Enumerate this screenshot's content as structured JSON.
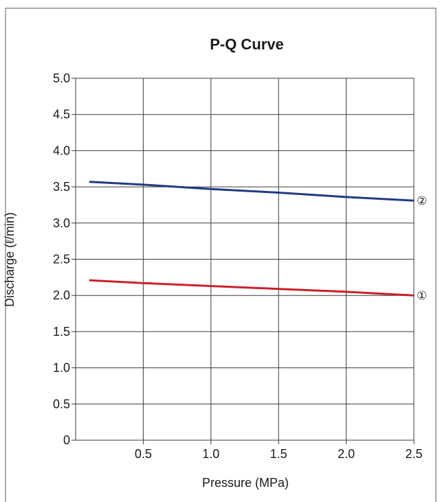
{
  "chart_data": {
    "type": "line",
    "title": "P-Q Curve",
    "xlabel": "Pressure (MPa)",
    "ylabel": "Discharge (ℓ/min)",
    "xlim": [
      0,
      2.5
    ],
    "ylim": [
      0,
      5.0
    ],
    "x_ticks": [
      "0.5",
      "1.0",
      "1.5",
      "2.0",
      "2.5"
    ],
    "y_ticks": [
      "0",
      "0.5",
      "1.0",
      "1.5",
      "2.0",
      "2.5",
      "3.0",
      "3.5",
      "4.0",
      "4.5",
      "5.0"
    ],
    "grid": true,
    "series": [
      {
        "name": "①",
        "color": "#cc1f2b",
        "x": [
          0.1,
          0.5,
          1.0,
          1.5,
          2.0,
          2.5
        ],
        "y": [
          2.21,
          2.17,
          2.13,
          2.09,
          2.05,
          2.0
        ]
      },
      {
        "name": "②",
        "color": "#1f3a86",
        "x": [
          0.1,
          0.5,
          1.0,
          1.5,
          2.0,
          2.5
        ],
        "y": [
          3.57,
          3.53,
          3.47,
          3.42,
          3.36,
          3.31
        ]
      }
    ]
  }
}
